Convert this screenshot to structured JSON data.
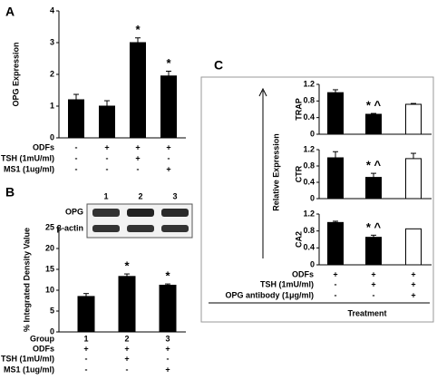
{
  "chart_data": [
    {
      "type": "bar",
      "panel_label": "A",
      "ylabel": "OPG Expression",
      "values": [
        1.2,
        1.0,
        3.0,
        1.95
      ],
      "errors": [
        0.17,
        0.17,
        0.15,
        0.15
      ],
      "colors": [
        "#000000",
        "#000000",
        "#000000",
        "#000000"
      ],
      "ylim": [
        0,
        4
      ],
      "yticks": [
        0,
        1,
        2,
        3,
        4
      ],
      "annotations": [
        {
          "index": 2,
          "text": "*"
        },
        {
          "index": 3,
          "text": "*"
        }
      ],
      "conditions": [
        {
          "label": "ODFs",
          "signs": [
            "-",
            "+",
            "+",
            "+"
          ]
        },
        {
          "label": "TSH (1mU/ml)",
          "signs": [
            "-",
            "-",
            "+",
            "-"
          ]
        },
        {
          "label": "MS1 (1ug/ml)",
          "signs": [
            "-",
            "-",
            "-",
            "+"
          ]
        }
      ]
    },
    {
      "type": "bar",
      "panel_label": "B",
      "ylabel": "% Integrated Density Value",
      "values": [
        8.5,
        13.3,
        11.2
      ],
      "errors": [
        0.7,
        0.6,
        0.3
      ],
      "colors": [
        "#000000",
        "#000000",
        "#000000"
      ],
      "ylim": [
        0,
        25
      ],
      "yticks": [
        0,
        5,
        10,
        15,
        20,
        25
      ],
      "annotations": [
        {
          "index": 1,
          "text": "*"
        },
        {
          "index": 2,
          "text": "*"
        }
      ],
      "blot": {
        "lanes": [
          "1",
          "2",
          "3"
        ],
        "bands": [
          "OPG",
          "β-actin"
        ]
      },
      "conditions": [
        {
          "label": "Group",
          "signs": [
            "1",
            "2",
            "3"
          ]
        },
        {
          "label": "ODFs",
          "signs": [
            "+",
            "+",
            "+"
          ]
        },
        {
          "label": "TSH (1mU/ml)",
          "signs": [
            "-",
            "+",
            "-"
          ]
        },
        {
          "label": "MS1 (1ug/ml)",
          "signs": [
            "-",
            "-",
            "+"
          ]
        }
      ]
    },
    {
      "type": "bar",
      "ylabel": "TRAP",
      "values": [
        1.0,
        0.48,
        0.72
      ],
      "errors": [
        0.07,
        0.02,
        0.02
      ],
      "colors": [
        "#000000",
        "#000000",
        "#ffffff"
      ],
      "ylim": [
        0,
        1.2
      ],
      "yticks": [
        0,
        0.4,
        0.8,
        1.2
      ],
      "annotations": [
        {
          "index": 1,
          "text": "* ^"
        }
      ]
    },
    {
      "type": "bar",
      "ylabel": "CTR",
      "values": [
        1.0,
        0.52,
        0.98
      ],
      "errors": [
        0.15,
        0.1,
        0.13
      ],
      "colors": [
        "#000000",
        "#000000",
        "#ffffff"
      ],
      "ylim": [
        0,
        1.2
      ],
      "yticks": [
        0,
        0.4,
        0.8,
        1.2
      ],
      "annotations": [
        {
          "index": 1,
          "text": "* ^"
        }
      ]
    },
    {
      "type": "bar",
      "ylabel": "CA2",
      "values": [
        1.0,
        0.65,
        0.85
      ],
      "errors": [
        0.03,
        0.05,
        null
      ],
      "colors": [
        "#000000",
        "#000000",
        "#ffffff"
      ],
      "ylim": [
        0,
        1.2
      ],
      "yticks": [
        0,
        0.4,
        0.8,
        1.2
      ],
      "annotations": [
        {
          "index": 1,
          "text": "* ^"
        }
      ]
    }
  ],
  "panel_c": {
    "label": "C",
    "ylabel": "Relative Expression",
    "xlabel": "Treatment",
    "conditions": [
      {
        "label": "ODFs",
        "signs": [
          "+",
          "+",
          "+"
        ]
      },
      {
        "label": "TSH (1mU/ml)",
        "signs": [
          "-",
          "+",
          "+"
        ]
      },
      {
        "label": "OPG antibody (1μg/ml)",
        "signs": [
          "-",
          "-",
          "+"
        ]
      }
    ]
  }
}
